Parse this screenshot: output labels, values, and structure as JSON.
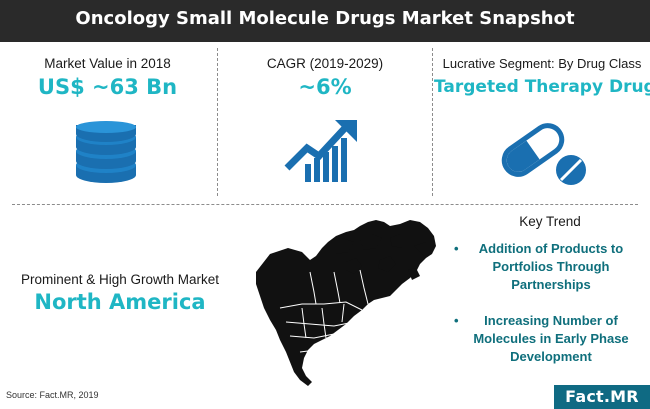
{
  "title": "Oncology Small Molecule Drugs Market Snapshot",
  "metrics": [
    {
      "label": "Market Value in 2018",
      "value": "US$ ~63 Bn",
      "icon": "coin-stack-icon"
    },
    {
      "label": "CAGR (2019-2029)",
      "value": "~6%",
      "icon": "growth-chart-icon"
    },
    {
      "label": "Lucrative Segment: By Drug Class",
      "value": "Targeted Therapy Drugs",
      "icon": "pills-icon"
    }
  ],
  "region": {
    "label": "Prominent & High Growth Market",
    "value": "North America",
    "icon": "north-america-map-icon"
  },
  "key_trend": {
    "heading": "Key Trend",
    "items": [
      "Addition of Products to Portfolios Through Partnerships",
      "Increasing Number of Molecules in Early Phase Development"
    ]
  },
  "footer": {
    "source": "Source: Fact.MR, 2019",
    "logo": "Fact.MR"
  },
  "colors": {
    "accent": "#1fb6c4",
    "dark_teal": "#0f6f7c",
    "header_bg": "#2a2a2a",
    "logo_bg": "#0f6a83"
  }
}
